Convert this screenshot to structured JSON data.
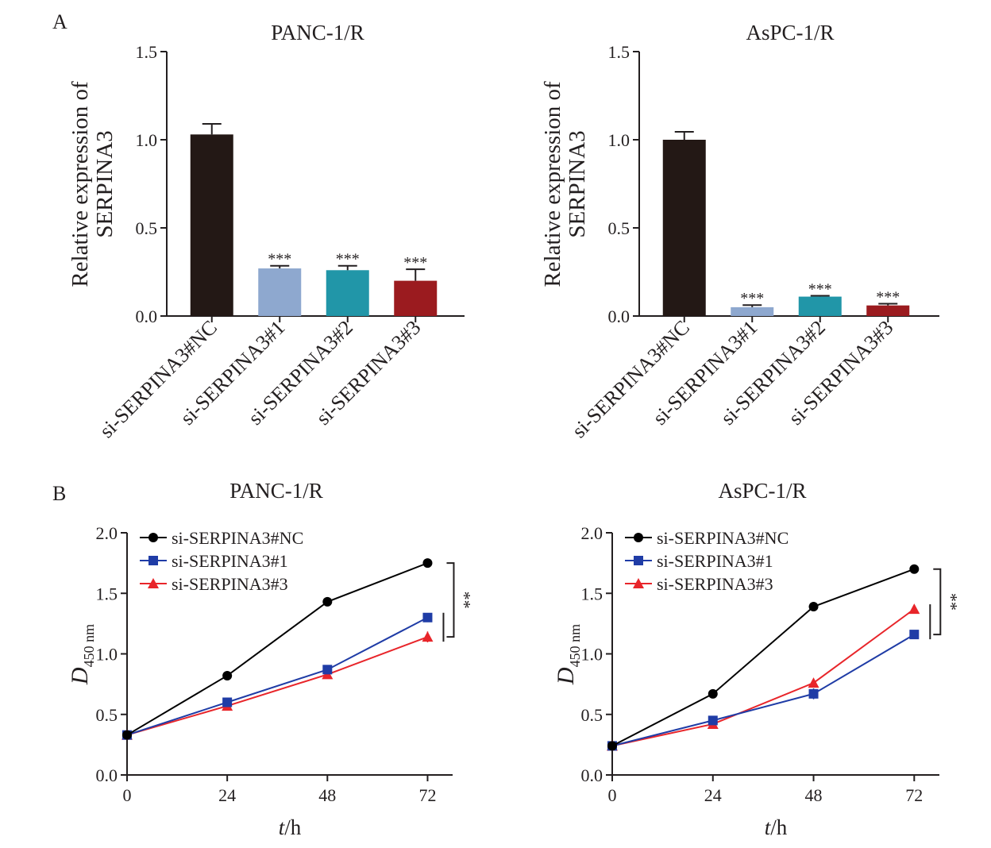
{
  "panels": [
    {
      "letter": "A"
    },
    {
      "letter": "B"
    }
  ],
  "chart_data": [
    {
      "type": "bar",
      "title": "PANC-1/R",
      "ylabel": [
        "Relative expression of",
        "SERPINA3"
      ],
      "xlabel": "",
      "ylim": [
        0,
        1.5
      ],
      "yticks": [
        "0.0",
        "0.5",
        "1.0",
        "1.5"
      ],
      "categories": [
        "si-SERPINA3#NC",
        "si-SERPINA3#1",
        "si-SERPINA3#2",
        "si-SERPINA3#3"
      ],
      "values": [
        1.03,
        0.27,
        0.26,
        0.2
      ],
      "errors": [
        0.06,
        0.015,
        0.025,
        0.065
      ],
      "annotations": [
        "",
        "***",
        "***",
        "***"
      ],
      "colors": [
        "#231815",
        "#8ea8cf",
        "#2196a8",
        "#9b1b1f"
      ]
    },
    {
      "type": "bar",
      "title": "AsPC-1/R",
      "ylabel": [
        "Relative expression of",
        "SERPINA3"
      ],
      "xlabel": "",
      "ylim": [
        0,
        1.5
      ],
      "yticks": [
        "0.0",
        "0.5",
        "1.0",
        "1.5"
      ],
      "categories": [
        "si-SERPINA3#NC",
        "si-SERPINA3#1",
        "si-SERPINA3#2",
        "si-SERPINA3#3"
      ],
      "values": [
        1.0,
        0.05,
        0.11,
        0.06
      ],
      "errors": [
        0.045,
        0.012,
        0.005,
        0.01
      ],
      "annotations": [
        "",
        "***",
        "***",
        "***"
      ],
      "colors": [
        "#231815",
        "#8ea8cf",
        "#2196a8",
        "#9b1b1f"
      ]
    },
    {
      "type": "line",
      "title": "PANC-1/R",
      "ylabel": "D",
      "ylabel_sub": "450 nm",
      "xlabel_italic": "t",
      "xlabel_rest": "/h",
      "x": [
        0,
        24,
        48,
        72
      ],
      "xlim": [
        0,
        78
      ],
      "ylim": [
        0,
        2.0
      ],
      "xticks": [
        "0",
        "24",
        "48",
        "72"
      ],
      "yticks": [
        "0.0",
        "0.5",
        "1.0",
        "1.5",
        "2.0"
      ],
      "series": [
        {
          "name": "si-SERPINA3#NC",
          "values": [
            0.33,
            0.82,
            1.43,
            1.75
          ],
          "errors": [
            0.02,
            0.03,
            0.015,
            0.015
          ],
          "color": "#000000",
          "marker": "circle"
        },
        {
          "name": "si-SERPINA3#1",
          "values": [
            0.33,
            0.6,
            0.87,
            1.3
          ],
          "errors": [
            0.02,
            0.02,
            0.02,
            0.025
          ],
          "color": "#1f3ca6",
          "marker": "square"
        },
        {
          "name": "si-SERPINA3#3",
          "values": [
            0.33,
            0.57,
            0.83,
            1.14
          ],
          "errors": [
            0.02,
            0.02,
            0.02,
            0.045
          ],
          "color": "#e8252a",
          "marker": "triangle"
        }
      ],
      "significance": [
        "**",
        ""
      ],
      "legend_position": "top-left"
    },
    {
      "type": "line",
      "title": "AsPC-1/R",
      "ylabel": "D",
      "ylabel_sub": "450 nm",
      "xlabel_italic": "t",
      "xlabel_rest": "/h",
      "x": [
        0,
        24,
        48,
        72
      ],
      "xlim": [
        0,
        78
      ],
      "ylim": [
        0,
        2.0
      ],
      "xticks": [
        "0",
        "24",
        "48",
        "72"
      ],
      "yticks": [
        "0.0",
        "0.5",
        "1.0",
        "1.5",
        "2.0"
      ],
      "series": [
        {
          "name": "si-SERPINA3#NC",
          "values": [
            0.24,
            0.67,
            1.39,
            1.7
          ],
          "errors": [
            0.015,
            0.015,
            0.015,
            0.015
          ],
          "color": "#000000",
          "marker": "circle"
        },
        {
          "name": "si-SERPINA3#1",
          "values": [
            0.24,
            0.45,
            0.67,
            1.16
          ],
          "errors": [
            0.015,
            0.02,
            0.045,
            0.03
          ],
          "color": "#1f3ca6",
          "marker": "square"
        },
        {
          "name": "si-SERPINA3#3",
          "values": [
            0.24,
            0.42,
            0.76,
            1.37
          ],
          "errors": [
            0.015,
            0.03,
            0.02,
            0.02
          ],
          "color": "#e8252a",
          "marker": "triangle"
        }
      ],
      "significance": [
        "**",
        ""
      ],
      "legend_position": "top-left"
    }
  ]
}
